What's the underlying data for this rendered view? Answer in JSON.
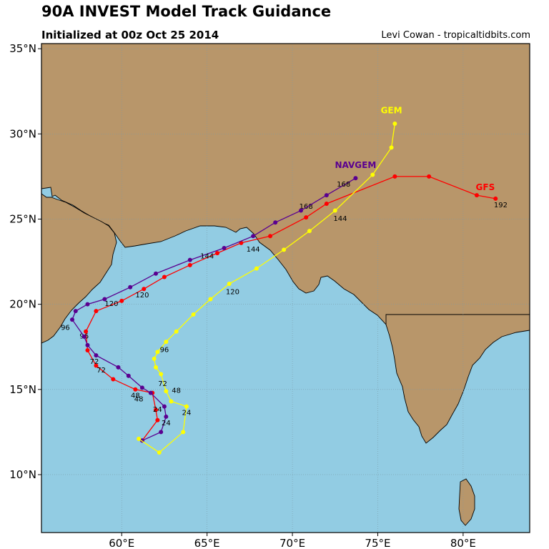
{
  "title": "90A INVEST Model Track Guidance",
  "subtitle": "Initialized at 00z Oct 25 2014",
  "credit": "Levi Cowan - tropicaltidbits.com",
  "colors": {
    "ocean": "#92cce3",
    "land": "#b8966a",
    "coast": "#000000",
    "grid": "#7a9aa8"
  },
  "chart_data": {
    "type": "map",
    "lon_range": [
      55.3,
      83.9
    ],
    "lat_range": [
      6.6,
      35.3
    ],
    "lon_ticks": [
      "60°E",
      "65°E",
      "70°E",
      "75°E",
      "80°E"
    ],
    "lat_ticks": [
      "10°N",
      "15°N",
      "20°N",
      "25°N",
      "30°N",
      "35°N"
    ],
    "models": [
      {
        "name": "GFS",
        "color": "#ff0000",
        "points": [
          [
            61.2,
            12.0
          ],
          [
            62.1,
            13.2
          ],
          [
            62.0,
            13.8
          ],
          [
            61.8,
            14.8
          ],
          [
            60.8,
            15.0
          ],
          [
            59.5,
            15.6
          ],
          [
            58.5,
            16.4
          ],
          [
            58.0,
            17.3
          ],
          [
            57.9,
            18.4
          ],
          [
            58.5,
            19.6
          ],
          [
            60.0,
            20.2
          ],
          [
            61.3,
            20.9
          ],
          [
            62.5,
            21.6
          ],
          [
            64.0,
            22.3
          ],
          [
            65.6,
            23.0
          ],
          [
            67.0,
            23.6
          ],
          [
            68.7,
            24.0
          ],
          [
            70.8,
            25.1
          ],
          [
            72.0,
            25.9
          ],
          [
            76.0,
            27.5
          ],
          [
            78.0,
            27.5
          ],
          [
            80.8,
            26.4
          ],
          [
            81.9,
            26.2
          ]
        ],
        "labels": [
          {
            "text": "24",
            "lon": 62.1,
            "lat": 13.7
          },
          {
            "text": "48",
            "lon": 60.8,
            "lat": 14.5
          },
          {
            "text": "72",
            "lon": 58.8,
            "lat": 16.0
          },
          {
            "text": "96",
            "lon": 57.8,
            "lat": 18.0
          },
          {
            "text": "120",
            "lon": 61.2,
            "lat": 20.4
          },
          {
            "text": "144",
            "lon": 67.7,
            "lat": 23.1
          },
          {
            "text": "168",
            "lon": 70.8,
            "lat": 25.6
          },
          {
            "text": "192",
            "lon": 82.2,
            "lat": 25.7
          }
        ],
        "name_pos": {
          "lon": 81.3,
          "lat": 26.7
        }
      },
      {
        "name": "NAVGEM",
        "color": "#5a0090",
        "points": [
          [
            61.2,
            12.0
          ],
          [
            62.3,
            12.5
          ],
          [
            62.6,
            13.4
          ],
          [
            62.5,
            14.0
          ],
          [
            61.7,
            14.8
          ],
          [
            61.2,
            15.1
          ],
          [
            60.4,
            15.8
          ],
          [
            59.8,
            16.3
          ],
          [
            58.5,
            17.0
          ],
          [
            58.0,
            17.6
          ],
          [
            57.8,
            18.1
          ],
          [
            57.1,
            19.1
          ],
          [
            57.3,
            19.6
          ],
          [
            58.0,
            20.0
          ],
          [
            59.0,
            20.3
          ],
          [
            60.5,
            21.0
          ],
          [
            62.0,
            21.8
          ],
          [
            64.0,
            22.6
          ],
          [
            66.0,
            23.3
          ],
          [
            67.7,
            24.0
          ],
          [
            69.0,
            24.8
          ],
          [
            70.5,
            25.5
          ],
          [
            72.0,
            26.4
          ],
          [
            73.7,
            27.4
          ]
        ],
        "labels": [
          {
            "text": "24",
            "lon": 62.6,
            "lat": 12.9
          },
          {
            "text": "48",
            "lon": 61.0,
            "lat": 14.3
          },
          {
            "text": "72",
            "lon": 58.4,
            "lat": 16.5
          },
          {
            "text": "96",
            "lon": 56.7,
            "lat": 18.5
          },
          {
            "text": "120",
            "lon": 59.4,
            "lat": 19.9
          },
          {
            "text": "144",
            "lon": 65.0,
            "lat": 22.7
          },
          {
            "text": "168",
            "lon": 73.0,
            "lat": 26.9
          }
        ],
        "name_pos": {
          "lon": 73.7,
          "lat": 28.0
        }
      },
      {
        "name": "GEM",
        "color": "#ffff00",
        "points": [
          [
            61.0,
            12.1
          ],
          [
            62.2,
            11.3
          ],
          [
            63.6,
            12.5
          ],
          [
            63.8,
            14.0
          ],
          [
            62.9,
            14.3
          ],
          [
            62.6,
            14.9
          ],
          [
            62.3,
            15.9
          ],
          [
            62.0,
            16.3
          ],
          [
            61.9,
            16.8
          ],
          [
            62.1,
            17.2
          ],
          [
            62.6,
            17.8
          ],
          [
            63.2,
            18.4
          ],
          [
            64.2,
            19.4
          ],
          [
            65.2,
            20.3
          ],
          [
            66.3,
            21.2
          ],
          [
            67.9,
            22.1
          ],
          [
            69.5,
            23.2
          ],
          [
            71.0,
            24.3
          ],
          [
            72.5,
            25.5
          ],
          [
            74.7,
            27.6
          ],
          [
            75.8,
            29.2
          ],
          [
            76.0,
            30.6
          ]
        ],
        "labels": [
          {
            "text": "24",
            "lon": 63.8,
            "lat": 13.5
          },
          {
            "text": "48",
            "lon": 63.2,
            "lat": 14.8
          },
          {
            "text": "72",
            "lon": 62.4,
            "lat": 15.2
          },
          {
            "text": "96",
            "lon": 62.5,
            "lat": 17.2
          },
          {
            "text": "120",
            "lon": 66.5,
            "lat": 20.6
          },
          {
            "text": "144",
            "lon": 72.8,
            "lat": 24.9
          }
        ],
        "name_pos": {
          "lon": 75.8,
          "lat": 31.2
        }
      }
    ]
  }
}
